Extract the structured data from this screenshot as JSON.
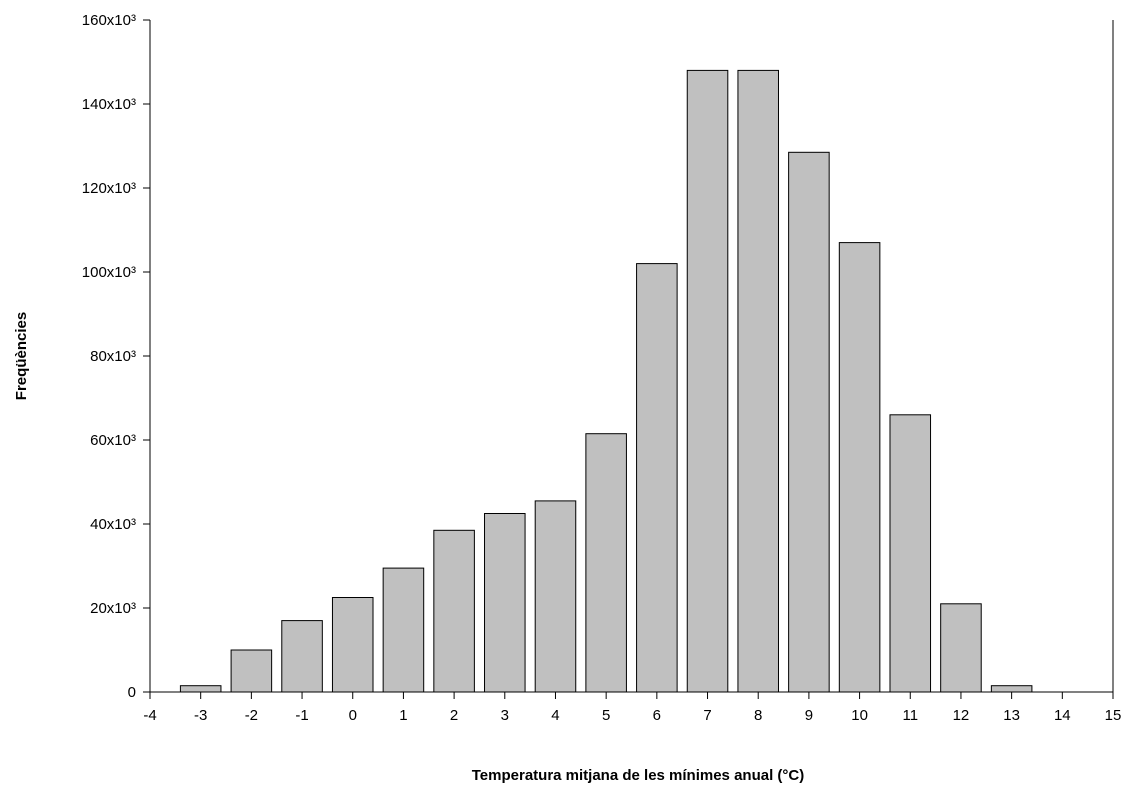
{
  "chart_data": {
    "type": "bar",
    "title": "",
    "xlabel": "Temperatura mitjana de les mínimes anual (°C)",
    "ylabel": "Freqüències",
    "xlim": [
      -4,
      15
    ],
    "ylim": [
      0,
      160000
    ],
    "x_ticks": [
      -4,
      -3,
      -2,
      -1,
      0,
      1,
      2,
      3,
      4,
      5,
      6,
      7,
      8,
      9,
      10,
      11,
      12,
      13,
      14,
      15
    ],
    "x_tick_labels": [
      "-4",
      "-3",
      "-2",
      "-1",
      "0",
      "1",
      "2",
      "3",
      "4",
      "5",
      "6",
      "7",
      "8",
      "9",
      "10",
      "11",
      "12",
      "13",
      "14",
      "15"
    ],
    "y_ticks": [
      0,
      20000,
      40000,
      60000,
      80000,
      100000,
      120000,
      140000,
      160000
    ],
    "y_tick_labels": [
      "0",
      "20x10³",
      "40x10³",
      "60x10³",
      "80x10³",
      "100x10³",
      "120x10³",
      "140x10³",
      "160x10³"
    ],
    "x": [
      -3,
      -2,
      -1,
      0,
      1,
      2,
      3,
      4,
      5,
      6,
      7,
      8,
      9,
      10,
      11,
      12,
      13
    ],
    "values": [
      1500,
      10000,
      17000,
      22500,
      29500,
      38500,
      42500,
      45500,
      61500,
      102000,
      148000,
      148000,
      128500,
      107000,
      66000,
      21000,
      1500
    ],
    "bar_color": "#c0c0c0",
    "bar_edge_color": "#000000",
    "grid": false,
    "legend": "none"
  }
}
